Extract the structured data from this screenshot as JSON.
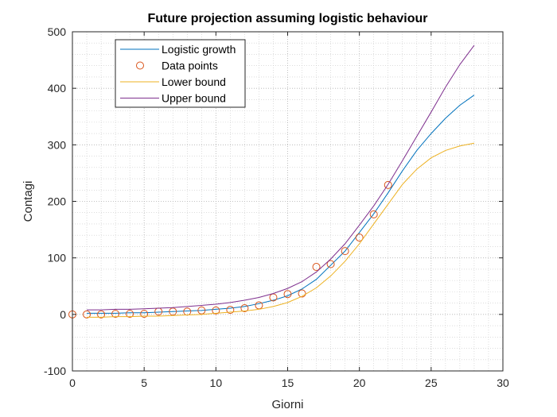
{
  "chart_data": {
    "type": "line",
    "title": "Future projection assuming logistic behaviour",
    "xlabel": "Giorni",
    "ylabel": "Contagi",
    "xlim": [
      0,
      30
    ],
    "ylim": [
      -100,
      500
    ],
    "xticks": [
      0,
      5,
      10,
      15,
      20,
      25,
      30
    ],
    "yticks": [
      -100,
      0,
      100,
      200,
      300,
      400,
      500
    ],
    "grid": "on (major and minor, dotted)",
    "legend_position": "top-left",
    "series": [
      {
        "name": "Logistic growth",
        "kind": "line",
        "color": "#0072BD",
        "x": [
          1,
          2,
          3,
          4,
          5,
          6,
          7,
          8,
          9,
          10,
          11,
          12,
          13,
          14,
          15,
          16,
          17,
          18,
          19,
          20,
          21,
          22,
          23,
          24,
          25,
          26,
          27,
          28
        ],
        "y": [
          2,
          2,
          2,
          3,
          3,
          4,
          5,
          6,
          7,
          9,
          11,
          14,
          19,
          25,
          33,
          45,
          62,
          87,
          112,
          145,
          178,
          215,
          254,
          290,
          320,
          347,
          370,
          388
        ]
      },
      {
        "name": "Data points",
        "kind": "markers",
        "color": "#D95319",
        "x": [
          0,
          1,
          2,
          3,
          4,
          5,
          6,
          7,
          8,
          9,
          10,
          11,
          12,
          13,
          14,
          15,
          16,
          17,
          18,
          19,
          20,
          21,
          22
        ],
        "y": [
          0,
          0,
          0,
          1,
          1,
          1,
          5,
          5,
          5,
          7,
          7,
          8,
          11,
          16,
          30,
          36,
          37,
          84,
          89,
          112,
          136,
          177,
          229
        ]
      },
      {
        "name": "Lower bound",
        "kind": "line",
        "color": "#EDB120",
        "x": [
          1,
          2,
          3,
          4,
          5,
          6,
          7,
          8,
          9,
          10,
          11,
          12,
          13,
          14,
          15,
          16,
          17,
          18,
          19,
          20,
          21,
          22,
          23,
          24,
          25,
          26,
          27,
          28
        ],
        "y": [
          -5,
          -5,
          -4,
          -4,
          -3,
          -3,
          -2,
          -1,
          0,
          2,
          4,
          6,
          9,
          14,
          21,
          32,
          47,
          68,
          94,
          125,
          160,
          195,
          230,
          257,
          277,
          290,
          298,
          303
        ]
      },
      {
        "name": "Upper bound",
        "kind": "line",
        "color": "#7E2F8E",
        "x": [
          1,
          2,
          3,
          4,
          5,
          6,
          7,
          8,
          9,
          10,
          11,
          12,
          13,
          14,
          15,
          16,
          17,
          18,
          19,
          20,
          21,
          22,
          23,
          24,
          25,
          26,
          27,
          28
        ],
        "y": [
          8,
          8,
          9,
          9,
          10,
          11,
          12,
          14,
          16,
          18,
          21,
          25,
          30,
          37,
          46,
          58,
          75,
          98,
          125,
          158,
          192,
          230,
          272,
          315,
          358,
          402,
          442,
          476
        ]
      }
    ]
  }
}
